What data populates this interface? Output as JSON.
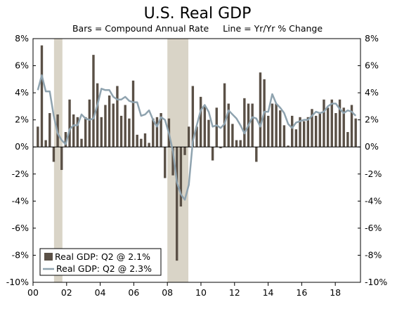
{
  "chart_data": {
    "type": "bar+line",
    "title": "U.S. Real GDP",
    "subtitle": "Bars = Compound Annual Rate     Line = Yr/Yr % Change",
    "y_ticks": [
      "8%",
      "6%",
      "4%",
      "2%",
      "0%",
      "-2%",
      "-4%",
      "-6%",
      "-8%",
      "-10%"
    ],
    "y_tick_values": [
      8,
      6,
      4,
      2,
      0,
      -2,
      -4,
      -6,
      -8,
      -10
    ],
    "ylim": [
      -10,
      8
    ],
    "x_ticks": [
      "00",
      "02",
      "04",
      "06",
      "08",
      "10",
      "12",
      "14",
      "16",
      "18"
    ],
    "x_tick_values": [
      2000,
      2002,
      2004,
      2006,
      2008,
      2010,
      2012,
      2014,
      2016,
      2018
    ],
    "xlim": [
      2000,
      2019.5
    ],
    "recessions": [
      [
        2001.25,
        2001.75
      ],
      [
        2008.0,
        2009.25
      ]
    ],
    "colors": {
      "bars": "#5a5046",
      "line": "#8fa3af",
      "recession": "#d9d4c7"
    },
    "series": [
      {
        "name": "Real GDP: Q2 @ 2.1%",
        "kind": "bar",
        "values": [
          1.5,
          7.5,
          0.5,
          2.5,
          -1.1,
          2.4,
          -1.7,
          1.1,
          3.5,
          2.4,
          2.2,
          0.6,
          2.2,
          3.5,
          6.8,
          4.7,
          2.2,
          3.1,
          3.8,
          3.2,
          4.5,
          2.3,
          3.1,
          2.1,
          4.9,
          0.9,
          0.6,
          1.0,
          0.3,
          2.1,
          2.2,
          2.5,
          -2.3,
          2.1,
          -2.1,
          -8.4,
          -4.4,
          -0.6,
          1.5,
          4.5,
          1.5,
          3.7,
          3.0,
          2.0,
          -1.0,
          2.9,
          -0.1,
          4.7,
          3.2,
          1.7,
          0.5,
          0.5,
          3.6,
          3.2,
          3.2,
          -1.1,
          5.5,
          5.0,
          2.3,
          3.2,
          3.2,
          2.7,
          1.6,
          0.1,
          2.3,
          1.3,
          2.2,
          1.9,
          2.2,
          2.8,
          2.3,
          2.5,
          3.5,
          2.9,
          3.5,
          2.5,
          3.5,
          2.9,
          1.1,
          3.1,
          2.1
        ]
      },
      {
        "name": "Real GDP: Q2 @ 2.3%",
        "kind": "line",
        "values": [
          4.2,
          5.3,
          4.1,
          4.1,
          2.3,
          1.0,
          0.5,
          0.2,
          1.3,
          1.6,
          1.6,
          2.4,
          2.1,
          2.0,
          2.1,
          3.1,
          4.3,
          4.2,
          4.2,
          3.7,
          3.5,
          3.5,
          3.7,
          3.4,
          3.3,
          3.3,
          2.3,
          2.4,
          2.7,
          2.0,
          1.5,
          2.2,
          2.0,
          1.0,
          -0.3,
          -2.6,
          -3.5,
          -3.9,
          -2.8,
          0.4,
          1.6,
          2.7,
          3.1,
          2.6,
          1.5,
          1.6,
          1.4,
          1.7,
          2.7,
          2.4,
          2.1,
          1.6,
          1.0,
          1.6,
          2.2,
          2.1,
          1.5,
          2.6,
          2.6,
          3.9,
          3.2,
          2.9,
          2.5,
          1.7,
          1.4,
          1.8,
          1.9,
          2.0,
          2.0,
          2.3,
          2.6,
          2.5,
          2.6,
          3.0,
          3.2,
          3.2,
          2.8,
          2.5,
          2.7,
          2.6,
          2.3
        ]
      }
    ],
    "legend": {
      "placement": "bottom-left",
      "items": [
        {
          "label": "Real GDP: Q2 @ 2.1%",
          "kind": "bar"
        },
        {
          "label": "Real GDP: Q2 @ 2.3%",
          "kind": "line"
        }
      ]
    }
  }
}
